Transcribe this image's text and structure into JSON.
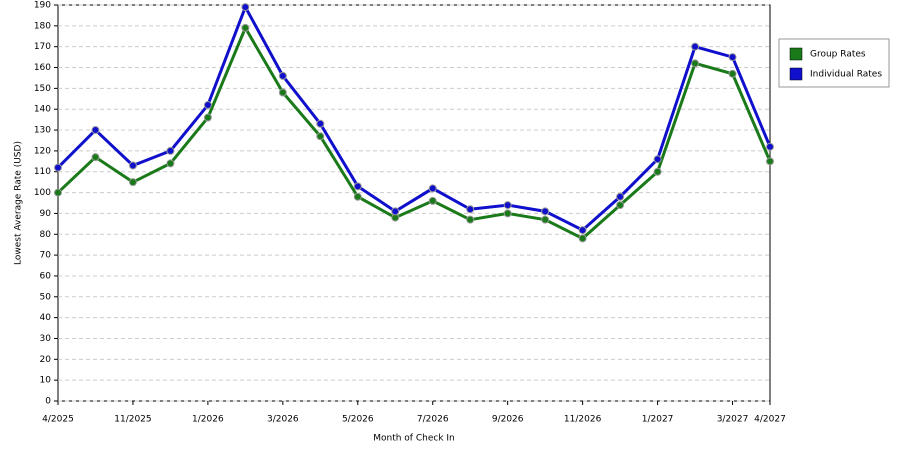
{
  "chart_data": {
    "type": "line",
    "categories": [
      "4/2025",
      null,
      "11/2025",
      null,
      "1/2026",
      null,
      "3/2026",
      null,
      "5/2026",
      null,
      "7/2026",
      null,
      "9/2026",
      null,
      "11/2026",
      null,
      "1/2027",
      null,
      "3/2027",
      "4/2027"
    ],
    "series": [
      {
        "name": "Group Rates",
        "color": "#1a7a1a",
        "values": [
          100,
          117,
          105,
          114,
          136,
          179,
          148,
          127,
          98,
          88,
          96,
          87,
          90,
          87,
          78,
          94,
          110,
          162,
          157,
          115
        ]
      },
      {
        "name": "Individual Rates",
        "color": "#1010cc",
        "values": [
          112,
          130,
          113,
          120,
          142,
          189,
          156,
          133,
          103,
          91,
          102,
          92,
          94,
          91,
          82,
          98,
          116,
          170,
          165,
          122
        ]
      }
    ],
    "ylim": [
      0,
      190
    ],
    "yticks": [
      0,
      10,
      20,
      30,
      40,
      50,
      60,
      70,
      80,
      90,
      100,
      110,
      120,
      130,
      140,
      150,
      160,
      170,
      180,
      190
    ],
    "y_label": "Lowest Average Rate (USD)",
    "x_label": "Month of Check In",
    "grid": true,
    "legend": "right"
  }
}
